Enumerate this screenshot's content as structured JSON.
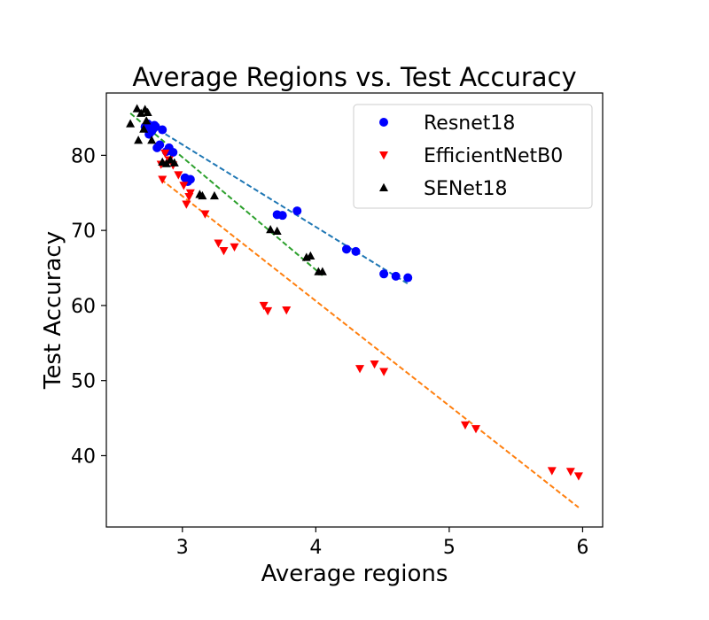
{
  "chart_data": {
    "type": "scatter",
    "title": "Average Regions vs. Test Accuracy",
    "xlabel": "Average regions",
    "ylabel": "Test Accuracy",
    "xlim": [
      2.43,
      6.15
    ],
    "ylim": [
      30.5,
      88.3
    ],
    "xticks": [
      3,
      4,
      5,
      6
    ],
    "yticks": [
      40,
      50,
      60,
      70,
      80
    ],
    "grid": false,
    "legend_position": "top-right",
    "series": [
      {
        "name": "Resnet18",
        "color": "#0000ff",
        "marker": "circle",
        "x": [
          2.72,
          2.74,
          2.75,
          2.77,
          2.78,
          2.79,
          2.81,
          2.8,
          2.83,
          2.85,
          2.88,
          2.9,
          2.93,
          3.02,
          3.04,
          3.06,
          3.71,
          3.75,
          3.86,
          4.23,
          4.3,
          4.51,
          4.6,
          4.69
        ],
        "y": [
          83.8,
          84.2,
          82.8,
          83.2,
          83.5,
          84.0,
          81.0,
          83.8,
          81.4,
          83.4,
          80.5,
          81.0,
          80.4,
          77.0,
          76.5,
          76.8,
          72.1,
          72.0,
          72.6,
          67.5,
          67.2,
          64.2,
          63.9,
          63.7
        ]
      },
      {
        "name": "EfficientNetB0",
        "color": "#ff0000",
        "marker": "triangle-down",
        "x": [
          2.84,
          2.85,
          2.87,
          2.9,
          2.93,
          2.97,
          3.01,
          3.03,
          3.05,
          3.06,
          3.17,
          3.27,
          3.31,
          3.39,
          3.61,
          3.64,
          3.78,
          4.33,
          4.44,
          4.51,
          5.12,
          5.2,
          5.77,
          5.91,
          5.97
        ],
        "y": [
          78.8,
          76.8,
          80.3,
          79.4,
          78.7,
          77.4,
          76.0,
          73.5,
          74.5,
          75.0,
          72.2,
          68.3,
          67.3,
          67.8,
          60.0,
          59.3,
          59.4,
          51.6,
          52.2,
          51.2,
          44.1,
          43.6,
          38.0,
          37.9,
          37.3
        ]
      },
      {
        "name": "SENet18",
        "color": "#000000",
        "marker": "triangle-up",
        "x": [
          2.61,
          2.66,
          2.67,
          2.69,
          2.71,
          2.72,
          2.73,
          2.74,
          2.77,
          2.85,
          2.88,
          2.91,
          2.94,
          3.13,
          3.15,
          3.24,
          3.66,
          3.71,
          3.93,
          3.96,
          4.02,
          4.05
        ],
        "y": [
          84.2,
          86.2,
          82.0,
          85.6,
          83.5,
          86.1,
          84.6,
          85.7,
          82.0,
          79.1,
          78.9,
          79.4,
          79.0,
          74.8,
          74.6,
          74.6,
          70.1,
          69.9,
          66.4,
          66.6,
          64.5,
          64.5
        ]
      }
    ],
    "trendlines": [
      {
        "series": "Resnet18",
        "color": "#1f77b4",
        "style": "dashed",
        "x": [
          2.72,
          4.69
        ],
        "y": [
          84.5,
          62.9
        ]
      },
      {
        "series": "EfficientNetB0",
        "color": "#ff7f0e",
        "style": "dashed",
        "x": [
          2.84,
          5.97
        ],
        "y": [
          76.8,
          33.1
        ]
      },
      {
        "series": "SENet18",
        "color": "#2ca02c",
        "style": "dashed",
        "x": [
          2.61,
          4.05
        ],
        "y": [
          85.6,
          64.0
        ]
      }
    ]
  }
}
